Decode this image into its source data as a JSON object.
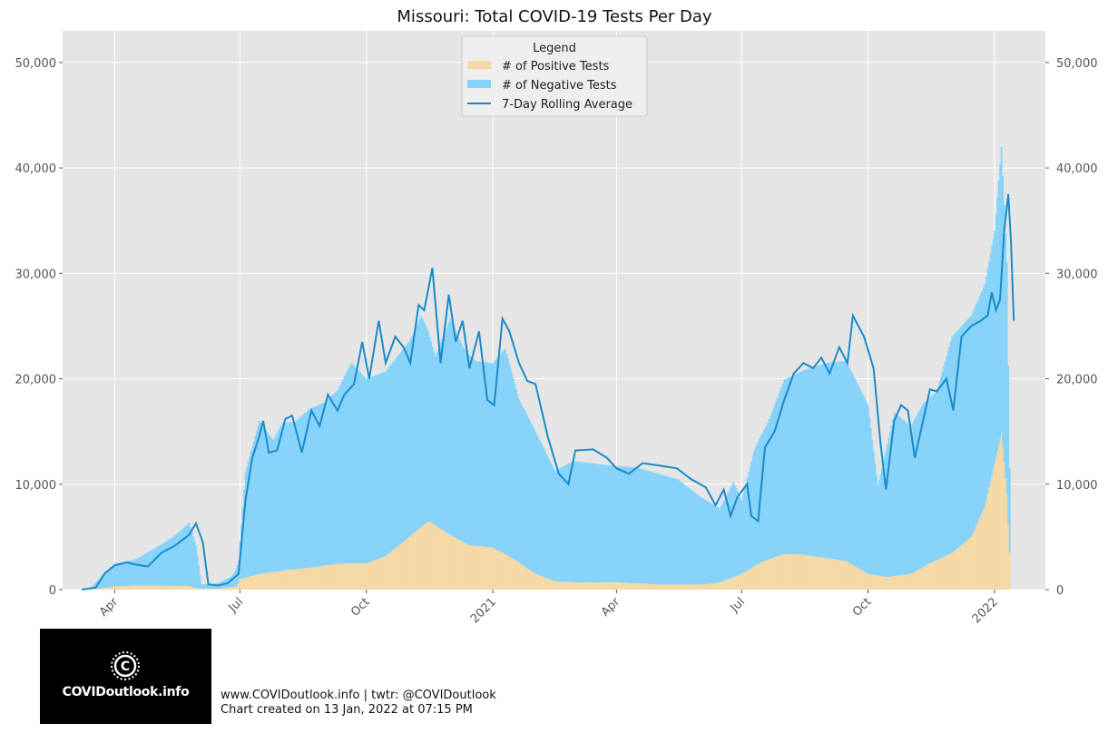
{
  "chart_data": {
    "type": "bar",
    "title": "Missouri: Total COVID-19 Tests Per Day",
    "x_range": [
      "2020-02-23",
      "2022-02-07"
    ],
    "ylim": [
      0,
      53000
    ],
    "y_ticks": [
      0,
      10000,
      20000,
      30000,
      40000,
      50000
    ],
    "y_tick_labels": [
      "0",
      "10,000",
      "20,000",
      "30,000",
      "40,000",
      "50,000"
    ],
    "x_ticks": [
      {
        "date": "2020-04-01",
        "label": "Apr"
      },
      {
        "date": "2020-07-01",
        "label": "Jul"
      },
      {
        "date": "2020-10-01",
        "label": "Oct"
      },
      {
        "date": "2021-01-01",
        "label": "2021"
      },
      {
        "date": "2021-04-01",
        "label": "Apr"
      },
      {
        "date": "2021-07-01",
        "label": "Jul"
      },
      {
        "date": "2021-10-01",
        "label": "Oct"
      },
      {
        "date": "2022-01-01",
        "label": "2022"
      }
    ],
    "grid": true,
    "legend": {
      "title": "Legend",
      "position": "top-center"
    },
    "series": [
      {
        "name": "# of Positive Tests",
        "kind": "bar",
        "color": "#f5d9a6",
        "points": [
          [
            "2020-03-08",
            0
          ],
          [
            "2020-03-20",
            100
          ],
          [
            "2020-04-01",
            300
          ],
          [
            "2020-04-15",
            400
          ],
          [
            "2020-05-01",
            400
          ],
          [
            "2020-05-15",
            350
          ],
          [
            "2020-05-25",
            350
          ],
          [
            "2020-06-01",
            100
          ],
          [
            "2020-06-15",
            100
          ],
          [
            "2020-06-28",
            300
          ],
          [
            "2020-07-01",
            1000
          ],
          [
            "2020-07-15",
            1500
          ],
          [
            "2020-08-01",
            1800
          ],
          [
            "2020-08-15",
            2000
          ],
          [
            "2020-09-01",
            2300
          ],
          [
            "2020-09-15",
            2500
          ],
          [
            "2020-10-01",
            2500
          ],
          [
            "2020-10-15",
            3200
          ],
          [
            "2020-11-01",
            5000
          ],
          [
            "2020-11-15",
            6500
          ],
          [
            "2020-12-01",
            5200
          ],
          [
            "2020-12-15",
            4200
          ],
          [
            "2021-01-01",
            4000
          ],
          [
            "2021-01-15",
            3000
          ],
          [
            "2021-02-01",
            1500
          ],
          [
            "2021-02-15",
            800
          ],
          [
            "2021-03-01",
            700
          ],
          [
            "2021-04-01",
            700
          ],
          [
            "2021-05-01",
            500
          ],
          [
            "2021-06-01",
            500
          ],
          [
            "2021-06-15",
            700
          ],
          [
            "2021-07-01",
            1500
          ],
          [
            "2021-07-15",
            2600
          ],
          [
            "2021-08-01",
            3400
          ],
          [
            "2021-08-15",
            3300
          ],
          [
            "2021-09-01",
            3000
          ],
          [
            "2021-09-15",
            2700
          ],
          [
            "2021-10-01",
            1500
          ],
          [
            "2021-10-15",
            1200
          ],
          [
            "2021-11-01",
            1500
          ],
          [
            "2021-11-15",
            2500
          ],
          [
            "2021-12-01",
            3500
          ],
          [
            "2021-12-15",
            5000
          ],
          [
            "2021-12-25",
            8000
          ],
          [
            "2022-01-01",
            12000
          ],
          [
            "2022-01-06",
            15000
          ],
          [
            "2022-01-10",
            9000
          ],
          [
            "2022-01-12",
            3500
          ]
        ]
      },
      {
        "name": "# of Negative Tests",
        "kind": "bar",
        "color": "#87d3fa",
        "points": [
          [
            "2020-03-08",
            0
          ],
          [
            "2020-03-15",
            200
          ],
          [
            "2020-03-25",
            1500
          ],
          [
            "2020-04-01",
            2200
          ],
          [
            "2020-04-15",
            2400
          ],
          [
            "2020-05-01",
            3600
          ],
          [
            "2020-05-15",
            4800
          ],
          [
            "2020-05-25",
            6000
          ],
          [
            "2020-05-30",
            4000
          ],
          [
            "2020-06-03",
            400
          ],
          [
            "2020-06-15",
            500
          ],
          [
            "2020-06-25",
            1000
          ],
          [
            "2020-06-30",
            2000
          ],
          [
            "2020-07-05",
            10000
          ],
          [
            "2020-07-15",
            14500
          ],
          [
            "2020-07-25",
            12500
          ],
          [
            "2020-08-01",
            14000
          ],
          [
            "2020-08-10",
            14000
          ],
          [
            "2020-08-20",
            15000
          ],
          [
            "2020-09-01",
            15500
          ],
          [
            "2020-09-10",
            16500
          ],
          [
            "2020-09-20",
            19000
          ],
          [
            "2020-10-01",
            17500
          ],
          [
            "2020-10-15",
            17500
          ],
          [
            "2020-11-01",
            18500
          ],
          [
            "2020-11-10",
            20000
          ],
          [
            "2020-11-20",
            16000
          ],
          [
            "2020-12-01",
            20500
          ],
          [
            "2020-12-10",
            18500
          ],
          [
            "2020-12-20",
            17500
          ],
          [
            "2021-01-01",
            17500
          ],
          [
            "2021-01-10",
            19500
          ],
          [
            "2021-01-20",
            15500
          ],
          [
            "2021-02-01",
            13500
          ],
          [
            "2021-02-15",
            10500
          ],
          [
            "2021-03-01",
            11500
          ],
          [
            "2021-04-01",
            11000
          ],
          [
            "2021-04-15",
            11000
          ],
          [
            "2021-05-01",
            10500
          ],
          [
            "2021-05-15",
            10000
          ],
          [
            "2021-06-01",
            8300
          ],
          [
            "2021-06-15",
            7000
          ],
          [
            "2021-06-25",
            9000
          ],
          [
            "2021-07-01",
            7000
          ],
          [
            "2021-07-10",
            11000
          ],
          [
            "2021-07-20",
            13000
          ],
          [
            "2021-08-01",
            16500
          ],
          [
            "2021-08-15",
            17500
          ],
          [
            "2021-09-01",
            18500
          ],
          [
            "2021-09-15",
            19000
          ],
          [
            "2021-10-01",
            16000
          ],
          [
            "2021-10-08",
            8500
          ],
          [
            "2021-10-20",
            15500
          ],
          [
            "2021-11-01",
            14000
          ],
          [
            "2021-11-10",
            15500
          ],
          [
            "2021-11-20",
            16000
          ],
          [
            "2021-12-01",
            20500
          ],
          [
            "2021-12-15",
            21000
          ],
          [
            "2021-12-25",
            21000
          ],
          [
            "2022-01-01",
            22000
          ],
          [
            "2022-01-06",
            27000
          ],
          [
            "2022-01-10",
            22000
          ],
          [
            "2022-01-12",
            8000
          ]
        ]
      },
      {
        "name": "7-Day Rolling Average",
        "kind": "line",
        "color": "#1a8bc9",
        "points": [
          [
            "2020-03-08",
            0
          ],
          [
            "2020-03-18",
            200
          ],
          [
            "2020-03-25",
            1600
          ],
          [
            "2020-04-01",
            2300
          ],
          [
            "2020-04-10",
            2600
          ],
          [
            "2020-04-15",
            2400
          ],
          [
            "2020-04-25",
            2200
          ],
          [
            "2020-05-05",
            3500
          ],
          [
            "2020-05-15",
            4200
          ],
          [
            "2020-05-25",
            5200
          ],
          [
            "2020-05-30",
            6300
          ],
          [
            "2020-06-04",
            4500
          ],
          [
            "2020-06-08",
            500
          ],
          [
            "2020-06-15",
            400
          ],
          [
            "2020-06-22",
            600
          ],
          [
            "2020-06-30",
            1500
          ],
          [
            "2020-07-05",
            8500
          ],
          [
            "2020-07-10",
            12500
          ],
          [
            "2020-07-15",
            14500
          ],
          [
            "2020-07-18",
            16000
          ],
          [
            "2020-07-22",
            13000
          ],
          [
            "2020-07-28",
            13200
          ],
          [
            "2020-08-03",
            16200
          ],
          [
            "2020-08-08",
            16500
          ],
          [
            "2020-08-15",
            13000
          ],
          [
            "2020-08-22",
            17000
          ],
          [
            "2020-08-28",
            15500
          ],
          [
            "2020-09-03",
            18500
          ],
          [
            "2020-09-10",
            17000
          ],
          [
            "2020-09-15",
            18500
          ],
          [
            "2020-09-22",
            19500
          ],
          [
            "2020-09-28",
            23500
          ],
          [
            "2020-10-03",
            20000
          ],
          [
            "2020-10-10",
            25500
          ],
          [
            "2020-10-15",
            21500
          ],
          [
            "2020-10-22",
            24000
          ],
          [
            "2020-10-28",
            23000
          ],
          [
            "2020-11-02",
            21500
          ],
          [
            "2020-11-08",
            27000
          ],
          [
            "2020-11-12",
            26500
          ],
          [
            "2020-11-18",
            30500
          ],
          [
            "2020-11-24",
            21500
          ],
          [
            "2020-11-30",
            28000
          ],
          [
            "2020-12-05",
            23500
          ],
          [
            "2020-12-10",
            25500
          ],
          [
            "2020-12-15",
            21000
          ],
          [
            "2020-12-22",
            24500
          ],
          [
            "2020-12-28",
            18000
          ],
          [
            "2021-01-02",
            17500
          ],
          [
            "2021-01-08",
            25700
          ],
          [
            "2021-01-13",
            24500
          ],
          [
            "2021-01-20",
            21500
          ],
          [
            "2021-01-26",
            19800
          ],
          [
            "2021-02-01",
            19500
          ],
          [
            "2021-02-10",
            14500
          ],
          [
            "2021-02-18",
            11000
          ],
          [
            "2021-02-25",
            10000
          ],
          [
            "2021-03-02",
            13200
          ],
          [
            "2021-03-15",
            13300
          ],
          [
            "2021-03-25",
            12500
          ],
          [
            "2021-04-01",
            11500
          ],
          [
            "2021-04-10",
            11000
          ],
          [
            "2021-04-20",
            12000
          ],
          [
            "2021-05-01",
            11800
          ],
          [
            "2021-05-15",
            11500
          ],
          [
            "2021-05-25",
            10500
          ],
          [
            "2021-06-05",
            9700
          ],
          [
            "2021-06-12",
            8000
          ],
          [
            "2021-06-18",
            9500
          ],
          [
            "2021-06-23",
            7000
          ],
          [
            "2021-06-28",
            8800
          ],
          [
            "2021-07-05",
            10000
          ],
          [
            "2021-07-08",
            7000
          ],
          [
            "2021-07-13",
            6500
          ],
          [
            "2021-07-18",
            13500
          ],
          [
            "2021-07-25",
            15000
          ],
          [
            "2021-08-01",
            18000
          ],
          [
            "2021-08-08",
            20500
          ],
          [
            "2021-08-15",
            21500
          ],
          [
            "2021-08-22",
            21000
          ],
          [
            "2021-08-28",
            22000
          ],
          [
            "2021-09-03",
            20500
          ],
          [
            "2021-09-10",
            23000
          ],
          [
            "2021-09-16",
            21500
          ],
          [
            "2021-09-20",
            26000
          ],
          [
            "2021-09-28",
            24000
          ],
          [
            "2021-10-05",
            21000
          ],
          [
            "2021-10-10",
            14000
          ],
          [
            "2021-10-14",
            9500
          ],
          [
            "2021-10-20",
            16000
          ],
          [
            "2021-10-25",
            17500
          ],
          [
            "2021-10-30",
            17000
          ],
          [
            "2021-11-04",
            12500
          ],
          [
            "2021-11-10",
            16000
          ],
          [
            "2021-11-15",
            19000
          ],
          [
            "2021-11-20",
            18800
          ],
          [
            "2021-11-27",
            20000
          ],
          [
            "2021-12-02",
            17000
          ],
          [
            "2021-12-08",
            24000
          ],
          [
            "2021-12-15",
            25000
          ],
          [
            "2021-12-22",
            25500
          ],
          [
            "2021-12-27",
            26000
          ],
          [
            "2021-12-30",
            28200
          ],
          [
            "2022-01-02",
            26500
          ],
          [
            "2022-01-05",
            27500
          ],
          [
            "2022-01-08",
            34000
          ],
          [
            "2022-01-11",
            37500
          ],
          [
            "2022-01-13",
            33000
          ],
          [
            "2022-01-15",
            25500
          ]
        ]
      }
    ]
  },
  "footer": {
    "line1": "www.COVIDoutlook.info | twtr: @COVIDoutlook",
    "line2": "Chart created on 13 Jan, 2022 at 07:15 PM"
  },
  "logo": {
    "text": "COVIDoutlook.info",
    "icon": "virus-icon"
  },
  "colors": {
    "plot_bg": "#e5e5e5",
    "grid": "#ffffff"
  }
}
